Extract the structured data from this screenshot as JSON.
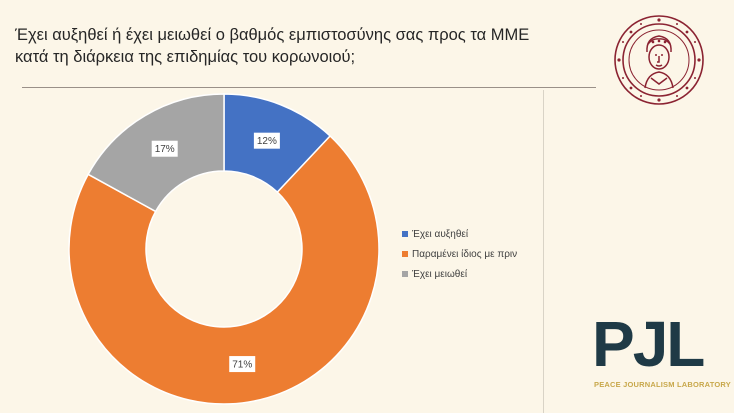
{
  "slide": {
    "title_line1": "Έχει αυξηθεί ή έχει μειωθεί ο βαθμός εμπιστοσύνης σας προς τα ΜΜΕ",
    "title_line2": "κατά τη διάρκεια της επιδημίας του κορωνοιού;"
  },
  "branding": {
    "pjl_word": "PJL",
    "pjl_subtitle": "PEACE JOURNALISM LABORATORY",
    "seal_icon": "university-seal-icon",
    "seal_color": "#8b2332",
    "pjl_color": "#1f3a46",
    "pjl_accent": "#c8a84b"
  },
  "chart_data": {
    "type": "pie",
    "style": "donut",
    "title": "",
    "categories": [
      "Έχει αυξηθεί",
      "Παραμένει ίδιος με πριν",
      "Έχει μειωθεί"
    ],
    "values": [
      12,
      71,
      17
    ],
    "labels": [
      "12%",
      "71%",
      "17%"
    ],
    "colors": [
      "#4472c4",
      "#ed7d31",
      "#a5a5a5"
    ],
    "legend": "right"
  }
}
